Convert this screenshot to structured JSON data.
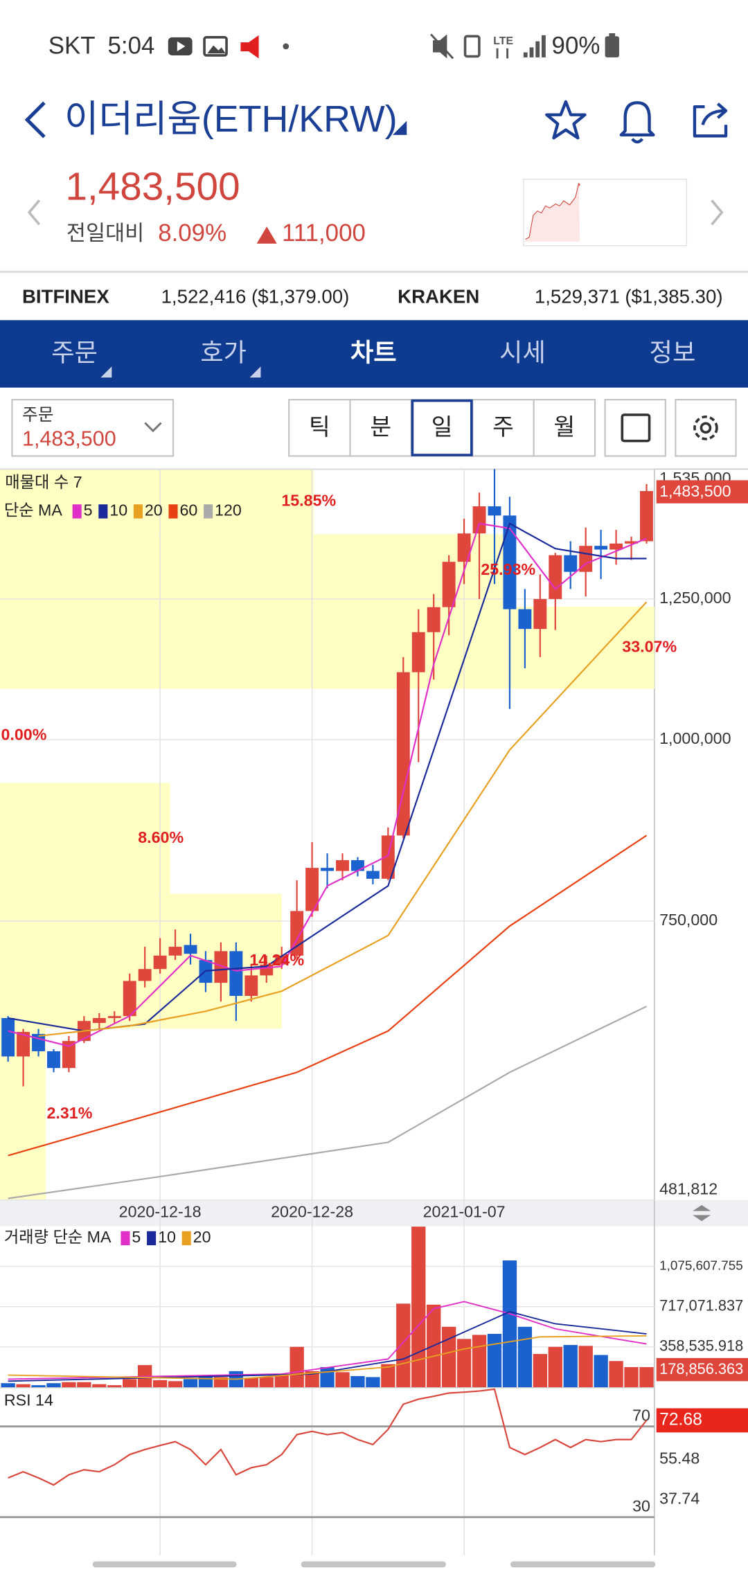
{
  "status": {
    "carrier": "SKT",
    "time": "5:04",
    "battery": "90%"
  },
  "header": {
    "title": "이더리움(ETH/KRW)",
    "price": "1,483,500",
    "change_label": "전일대비",
    "change_pct": "8.09%",
    "change_amount": "111,000"
  },
  "exchanges": [
    {
      "name": "BITFINEX",
      "price": "1,522,416 ($1,379.00)"
    },
    {
      "name": "KRAKEN",
      "price": "1,529,371 ($1,385.30)"
    }
  ],
  "tabs": [
    "주문",
    "호가",
    "차트",
    "시세",
    "정보"
  ],
  "order_box": {
    "label": "주문",
    "value": "1,483,500"
  },
  "periods": [
    "틱",
    "분",
    "일",
    "주",
    "월"
  ],
  "chart_data": [
    {
      "type": "candlestick",
      "legend_title": "단순 MA",
      "categories": [
        null,
        null,
        null,
        null,
        null,
        null,
        null,
        null,
        null,
        null,
        "2020-12-18",
        null,
        null,
        null,
        null,
        null,
        null,
        null,
        null,
        null,
        "2020-12-28",
        null,
        null,
        null,
        null,
        null,
        null,
        null,
        null,
        null,
        "2021-01-07",
        null,
        null,
        null,
        null,
        null,
        null,
        null,
        null,
        null,
        null,
        null,
        null
      ],
      "open": [
        643000,
        605000,
        627000,
        610000,
        594000,
        620000,
        638000,
        643000,
        645000,
        682000,
        695000,
        710000,
        722000,
        705000,
        680000,
        715000,
        666000,
        688000,
        700000,
        710000,
        762000,
        816000,
        812000,
        826000,
        812000,
        802000,
        859000,
        1113000,
        1186000,
        1234000,
        1326000,
        1387000,
        1448000,
        1427000,
        1230000,
        1192000,
        1250000,
        1340000,
        1305000,
        1360000,
        1352000,
        1365000,
        1370000
      ],
      "high": [
        645000,
        632000,
        632000,
        612000,
        625000,
        645000,
        648000,
        650000,
        690000,
        720000,
        730000,
        740000,
        735000,
        715000,
        725000,
        725000,
        700000,
        710000,
        720000,
        800000,
        850000,
        835000,
        835000,
        830000,
        820000,
        870000,
        1140000,
        1230000,
        1260000,
        1340000,
        1420000,
        1480000,
        1536000,
        1470000,
        1270000,
        1300000,
        1345000,
        1370000,
        1400000,
        1395000,
        1395000,
        1380000,
        1500000
      ],
      "low": [
        600000,
        577000,
        605000,
        590000,
        590000,
        618000,
        632000,
        638000,
        640000,
        675000,
        690000,
        705000,
        700000,
        670000,
        660000,
        640000,
        660000,
        680000,
        695000,
        705000,
        755000,
        790000,
        800000,
        805000,
        795000,
        800000,
        855000,
        965000,
        1100000,
        1180000,
        1280000,
        1250000,
        1280000,
        1050000,
        1120000,
        1140000,
        1190000,
        1270000,
        1255000,
        1290000,
        1320000,
        1330000,
        1365000
      ],
      "close": [
        605000,
        629000,
        610000,
        594000,
        620000,
        640000,
        643000,
        645000,
        682000,
        695000,
        710000,
        720000,
        712000,
        680000,
        715000,
        666000,
        688000,
        700000,
        710000,
        762000,
        816000,
        812000,
        826000,
        812000,
        802000,
        859000,
        1113000,
        1186000,
        1234000,
        1326000,
        1387000,
        1448000,
        1427000,
        1230000,
        1192000,
        1250000,
        1340000,
        1305000,
        1360000,
        1352000,
        1365000,
        1370000,
        1483500
      ],
      "colors": {
        "up": "#e0473c",
        "down": "#1b62cf"
      },
      "ylim": [
        481812,
        1536000
      ],
      "log_scale": true,
      "yticks": [
        {
          "value": 1535000,
          "label": "1,535,000"
        },
        {
          "value": 1250000,
          "label": "1,250,000"
        },
        {
          "value": 1000000,
          "label": "1,000,000"
        },
        {
          "value": 750000,
          "label": "750,000"
        },
        {
          "value": 481812,
          "label": "481,812"
        }
      ],
      "last_label": "1,483,500",
      "ma": [
        {
          "name": "5",
          "color": "#e030c8",
          "x": [
            0,
            4,
            8,
            12,
            15,
            18,
            21,
            25,
            28,
            31,
            33,
            36,
            38,
            42
          ],
          "values": [
            630000,
            615000,
            645000,
            710000,
            693000,
            698000,
            793000,
            832000,
            1127000,
            1409000,
            1398000,
            1270000,
            1322000,
            1376000
          ]
        },
        {
          "name": "10",
          "color": "#1a2a9a",
          "x": [
            0,
            5,
            9,
            13,
            17,
            22,
            25,
            29,
            33,
            36,
            40,
            42
          ],
          "values": [
            643000,
            630000,
            637000,
            693000,
            698000,
            756000,
            793000,
            1057000,
            1409000,
            1354000,
            1333000,
            1333000
          ]
        },
        {
          "name": "20",
          "color": "#e8a020",
          "x": [
            2,
            8,
            13,
            18,
            25,
            33,
            42
          ],
          "values": [
            625000,
            635000,
            650000,
            671000,
            733000,
            984000,
            1244000
          ]
        },
        {
          "name": "60",
          "color": "#e84010",
          "x": [
            0,
            10,
            19,
            25,
            33,
            42
          ],
          "values": [
            517000,
            554000,
            590000,
            630000,
            744000,
            859000
          ]
        },
        {
          "name": "120",
          "color": "#aaaaaa",
          "x": [
            0,
            10,
            25,
            33,
            42
          ],
          "values": [
            483000,
            500000,
            528000,
            590000,
            655000
          ]
        }
      ],
      "volume_profile": {
        "title": "매물대 수 7",
        "color": "#ffffc4",
        "values": [
          2.31,
          14.24,
          8.6,
          0.0,
          33.07,
          25.93,
          15.85
        ],
        "value_labels": [
          "2.31%",
          "14.24%",
          "8.60%",
          "0.00%",
          "33.07%",
          "25.93%",
          "15.85%"
        ]
      }
    },
    {
      "type": "bar",
      "legend_title": "거래량 단순 MA",
      "values": [
        36000,
        27000,
        18000,
        36000,
        45000,
        45000,
        27000,
        18000,
        72000,
        197000,
        63000,
        54000,
        72000,
        108000,
        90000,
        143000,
        81000,
        90000,
        108000,
        359000,
        143000,
        179000,
        134000,
        99000,
        90000,
        206000,
        744000,
        1430000,
        735000,
        538000,
        430000,
        466000,
        475000,
        1129000,
        538000,
        296000,
        359000,
        376000,
        368000,
        287000,
        233000,
        179000,
        178856.363
      ],
      "ylim": [
        0,
        1434143.672
      ],
      "yticks": [
        {
          "value": 1075607.755,
          "label": "1,075,607.755"
        },
        {
          "value": 717071.837,
          "label": "717,071.837"
        },
        {
          "value": 358535.918,
          "label": "358,535.918"
        }
      ],
      "last_label": "178,856.363",
      "ma": [
        {
          "name": "5",
          "color": "#e030c8",
          "x": [
            0,
            18,
            25,
            28,
            30,
            33,
            36,
            40,
            42
          ],
          "values": [
            72000,
            117000,
            251000,
            699000,
            762000,
            654000,
            520000,
            430000,
            385000
          ]
        },
        {
          "name": "10",
          "color": "#1a2a9a",
          "x": [
            0,
            20,
            26,
            29,
            33,
            36,
            42
          ],
          "values": [
            54000,
            117000,
            251000,
            430000,
            672000,
            565000,
            475000
          ]
        },
        {
          "name": "20",
          "color": "#e8a020",
          "x": [
            0,
            15,
            25,
            30,
            35,
            42
          ],
          "values": [
            108000,
            72000,
            179000,
            341000,
            448000,
            457000
          ]
        }
      ]
    },
    {
      "type": "line",
      "title": "RSI 14",
      "color": "#d9463b",
      "values": [
        47.3,
        50.0,
        47.3,
        44.2,
        48.7,
        50.9,
        50.0,
        53.1,
        57.6,
        59.8,
        61.6,
        63.3,
        59.8,
        53.1,
        59.8,
        48.7,
        51.8,
        53.1,
        57.6,
        66.4,
        67.8,
        66.4,
        67.3,
        64.2,
        62.0,
        68.7,
        79.8,
        82.0,
        83.3,
        84.7,
        85.1,
        85.6,
        86.4,
        60.7,
        57.6,
        60.7,
        64.2,
        60.7,
        64.2,
        63.3,
        64.2,
        64.2,
        72.68
      ],
      "ylim": [
        15.4,
        86.4
      ],
      "levels": [
        70,
        30
      ],
      "yticks": [
        55.48,
        37.74
      ]
    }
  ]
}
